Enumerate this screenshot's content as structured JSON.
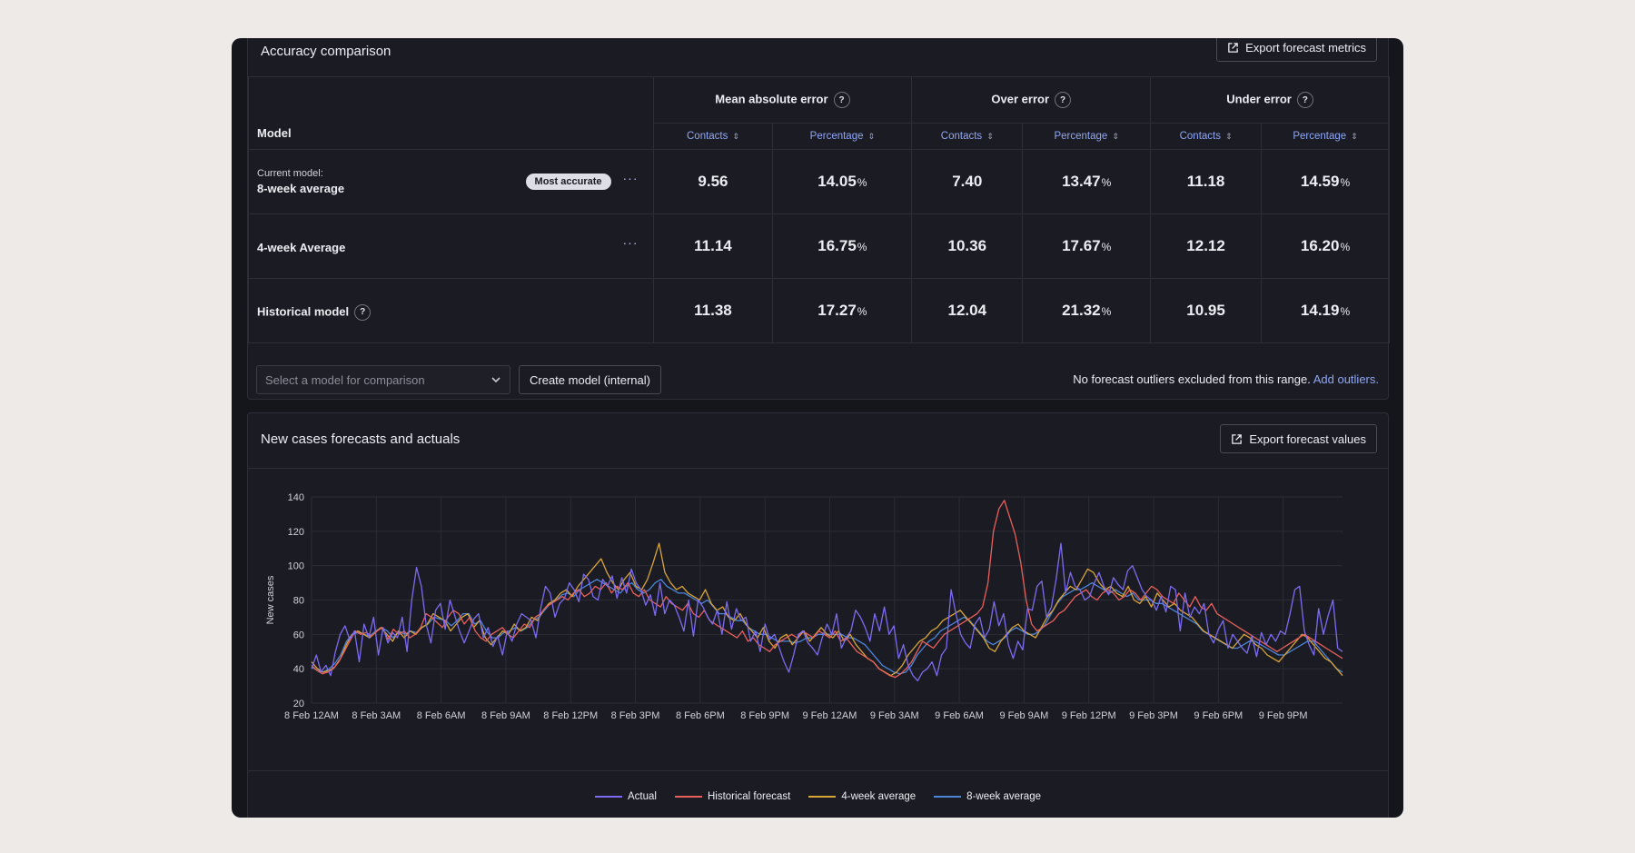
{
  "accuracy": {
    "title": "Accuracy comparison",
    "export_label": "Export forecast metrics",
    "model_header": "Model",
    "groups": [
      "Mean absolute error",
      "Over error",
      "Under error"
    ],
    "sub_headers": [
      "Contacts",
      "Percentage",
      "Contacts",
      "Percentage",
      "Contacts",
      "Percentage"
    ],
    "pct_sign": "%",
    "rows": [
      {
        "label_small": "Current model:",
        "name": "8-week average",
        "badge": "Most accurate",
        "menu": "···",
        "values": [
          "9.56",
          "14.05",
          "7.40",
          "13.47",
          "11.18",
          "14.59"
        ]
      },
      {
        "label_small": "",
        "name": "4-week Average",
        "badge": "",
        "menu": "···",
        "values": [
          "11.14",
          "16.75",
          "10.36",
          "17.67",
          "12.12",
          "16.20"
        ]
      },
      {
        "label_small": "",
        "name": "Historical model",
        "badge": "",
        "menu": "",
        "values": [
          "11.38",
          "17.27",
          "12.04",
          "21.32",
          "10.95",
          "14.19"
        ]
      }
    ],
    "select_placeholder": "Select a model for comparison",
    "create_label": "Create model (internal)",
    "note_text": "No forecast outliers excluded from this range. ",
    "note_link": "Add outliers."
  },
  "forecast": {
    "title": "New cases forecasts and actuals",
    "export_label": "Export forecast values"
  },
  "chart_data": {
    "type": "line",
    "ylabel": "New cases",
    "xlabel": "",
    "ylim": [
      20,
      140
    ],
    "yticks": [
      20,
      40,
      60,
      80,
      100,
      120,
      140
    ],
    "x_tick_labels": [
      "8 Feb 12AM",
      "8 Feb 3AM",
      "8 Feb 6AM",
      "8 Feb 9AM",
      "8 Feb 12PM",
      "8 Feb 3PM",
      "8 Feb 6PM",
      "8 Feb 9PM",
      "9 Feb 12AM",
      "9 Feb 3AM",
      "9 Feb 6AM",
      "9 Feb 9AM",
      "9 Feb 12PM",
      "9 Feb 3PM",
      "9 Feb 6PM",
      "9 Feb 9PM"
    ],
    "x_hours_range": [
      0,
      47.75
    ],
    "grid": true,
    "legend_position": "bottom",
    "series": [
      {
        "name": "Actual",
        "color": "#7b6cf0",
        "values": [
          40,
          48,
          38,
          42,
          36,
          50,
          60,
          65,
          57,
          62,
          44,
          66,
          58,
          70,
          48,
          64,
          55,
          61,
          58,
          70,
          50,
          80,
          99,
          88,
          66,
          55,
          74,
          78,
          63,
          80,
          71,
          62,
          55,
          62,
          69,
          72,
          58,
          64,
          53,
          59,
          48,
          62,
          56,
          66,
          72,
          70,
          68,
          58,
          75,
          88,
          84,
          70,
          78,
          81,
          90,
          86,
          79,
          95,
          92,
          82,
          80,
          92,
          88,
          94,
          81,
          93,
          84,
          98,
          90,
          86,
          77,
          83,
          71,
          90,
          72,
          80,
          77,
          70,
          62,
          80,
          59,
          80,
          76,
          70,
          66,
          74,
          60,
          79,
          63,
          75,
          68,
          70,
          56,
          62,
          50,
          66,
          57,
          60,
          52,
          44,
          38,
          48,
          60,
          62,
          55,
          52,
          48,
          58,
          66,
          60,
          72,
          52,
          58,
          62,
          74,
          70,
          64,
          56,
          72,
          62,
          76,
          60,
          65,
          46,
          54,
          42,
          36,
          33,
          38,
          40,
          44,
          36,
          48,
          52,
          86,
          72,
          60,
          55,
          52,
          66,
          70,
          58,
          63,
          79,
          65,
          72,
          54,
          46,
          56,
          51,
          75,
          74,
          88,
          91,
          70,
          76,
          92,
          113,
          84,
          96,
          88,
          86,
          80,
          82,
          90,
          96,
          88,
          83,
          93,
          89,
          86,
          97,
          100,
          93,
          86,
          82,
          80,
          74,
          82,
          73,
          88,
          86,
          62,
          84,
          70,
          76,
          72,
          78,
          60,
          55,
          63,
          68,
          52,
          60,
          56,
          52,
          49,
          59,
          47,
          61,
          54,
          60,
          56,
          62,
          60,
          72,
          86,
          88,
          62,
          54,
          48,
          75,
          60,
          71,
          80,
          52,
          50
        ]
      },
      {
        "name": "Historical forecast",
        "color": "#e8605c",
        "values": [
          42,
          39,
          37,
          38,
          40,
          44,
          50,
          56,
          62,
          60,
          61,
          59,
          62,
          64,
          57,
          63,
          60,
          62,
          58,
          60,
          64,
          72,
          70,
          67,
          64,
          70,
          74,
          72,
          66,
          70,
          62,
          58,
          56,
          60,
          62,
          64,
          60,
          58,
          62,
          66,
          64,
          70,
          72,
          76,
          78,
          80,
          82,
          80,
          84,
          86,
          82,
          84,
          88,
          86,
          90,
          84,
          88,
          86,
          90,
          84,
          82,
          86,
          80,
          78,
          76,
          82,
          78,
          76,
          74,
          78,
          72,
          70,
          74,
          68,
          66,
          64,
          62,
          60,
          58,
          62,
          56,
          58,
          54,
          52,
          50,
          54,
          56,
          58,
          60,
          58,
          62,
          60,
          58,
          62,
          60,
          58,
          62,
          56,
          58,
          54,
          50,
          48,
          46,
          44,
          40,
          38,
          36,
          35,
          37,
          40,
          44,
          50,
          56,
          54,
          52,
          56,
          60,
          62,
          64,
          66,
          68,
          70,
          72,
          76,
          90,
          120,
          133,
          138,
          128,
          118,
          102,
          80,
          66,
          62,
          64,
          66,
          68,
          72,
          74,
          78,
          82,
          84,
          86,
          82,
          80,
          84,
          86,
          84,
          80,
          82,
          86,
          84,
          80,
          84,
          88,
          86,
          82,
          80,
          78,
          84,
          80,
          76,
          82,
          76,
          74,
          78,
          72,
          70,
          68,
          66,
          64,
          62,
          60,
          58,
          56,
          54,
          52,
          50,
          52,
          54,
          56,
          58,
          60,
          58,
          56,
          54,
          52,
          50,
          48,
          46
        ]
      },
      {
        "name": "4-week average",
        "color": "#d8a537",
        "values": [
          44,
          40,
          38,
          39,
          41,
          46,
          54,
          60,
          62,
          60,
          58,
          61,
          64,
          60,
          56,
          62,
          58,
          62,
          60,
          64,
          66,
          72,
          70,
          68,
          62,
          66,
          70,
          72,
          64,
          68,
          58,
          54,
          58,
          62,
          60,
          66,
          62,
          64,
          70,
          68,
          74,
          78,
          80,
          84,
          86,
          82,
          88,
          92,
          96,
          100,
          104,
          96,
          90,
          86,
          92,
          96,
          88,
          86,
          92,
          102,
          113,
          96,
          90,
          86,
          88,
          84,
          82,
          80,
          86,
          78,
          74,
          76,
          70,
          68,
          72,
          66,
          62,
          58,
          64,
          56,
          52,
          58,
          60,
          54,
          58,
          62,
          56,
          60,
          64,
          60,
          58,
          62,
          56,
          60,
          54,
          50,
          46,
          44,
          40,
          38,
          36,
          38,
          42,
          48,
          52,
          56,
          58,
          62,
          64,
          68,
          70,
          72,
          74,
          70,
          66,
          62,
          58,
          52,
          50,
          56,
          60,
          64,
          66,
          62,
          60,
          58,
          64,
          70,
          74,
          80,
          84,
          88,
          86,
          92,
          98,
          96,
          90,
          86,
          88,
          84,
          82,
          88,
          80,
          78,
          82,
          76,
          84,
          80,
          76,
          78,
          74,
          72,
          70,
          66,
          62,
          60,
          58,
          56,
          54,
          52,
          56,
          60,
          58,
          54,
          52,
          48,
          46,
          44,
          48,
          52,
          56,
          60,
          58,
          54,
          50,
          46,
          44,
          40,
          36
        ]
      },
      {
        "name": "8-week average",
        "color": "#4c86d8",
        "values": [
          41,
          39,
          38,
          40,
          43,
          48,
          56,
          60,
          61,
          60,
          59,
          62,
          64,
          62,
          58,
          62,
          60,
          62,
          61,
          64,
          66,
          70,
          69,
          68,
          65,
          68,
          72,
          72,
          66,
          68,
          62,
          58,
          58,
          61,
          62,
          64,
          62,
          64,
          68,
          70,
          74,
          78,
          80,
          83,
          84,
          82,
          86,
          88,
          90,
          92,
          90,
          88,
          86,
          84,
          88,
          90,
          86,
          84,
          86,
          90,
          92,
          88,
          86,
          84,
          84,
          82,
          80,
          78,
          80,
          76,
          72,
          72,
          70,
          68,
          68,
          64,
          62,
          60,
          60,
          58,
          56,
          56,
          56,
          55,
          56,
          58,
          58,
          60,
          60,
          60,
          60,
          60,
          58,
          58,
          56,
          54,
          50,
          46,
          42,
          40,
          38,
          37,
          38,
          42,
          48,
          52,
          56,
          58,
          62,
          64,
          66,
          68,
          70,
          68,
          64,
          60,
          56,
          54,
          56,
          58,
          62,
          64,
          62,
          60,
          60,
          62,
          66,
          72,
          78,
          82,
          84,
          86,
          86,
          88,
          90,
          88,
          86,
          84,
          86,
          84,
          82,
          84,
          80,
          80,
          80,
          78,
          78,
          76,
          74,
          72,
          70,
          68,
          66,
          62,
          60,
          58,
          56,
          54,
          52,
          52,
          54,
          56,
          56,
          54,
          52,
          50,
          48,
          48,
          50,
          52,
          54,
          56,
          56,
          52,
          48,
          44,
          40,
          38
        ]
      }
    ]
  }
}
